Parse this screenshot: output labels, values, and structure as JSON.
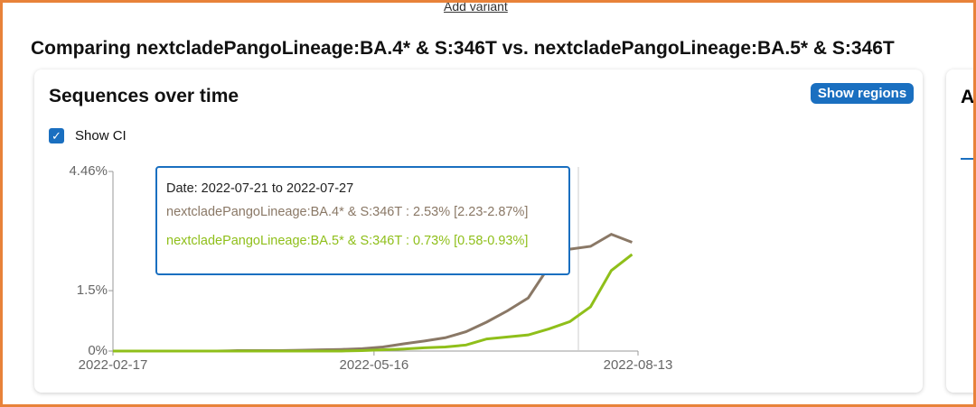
{
  "page": {
    "add_variant": "Add variant",
    "title": "Comparing nextcladePangoLineage:BA.4* & S:346T vs. nextcladePangoLineage:BA.5* & S:346T",
    "card_title": "Sequences over time",
    "button": "Show regions",
    "checkbox": "Show CI",
    "side_title": "A",
    "tooltip": {
      "date": "Date: 2022-07-21 to 2022-07-27",
      "lines": [
        "nextcladePangoLineage:BA.4* & S:346T : 2.53% [2.23-2.87%]",
        "nextcladePangoLineage:BA.5* & S:346T : 0.73% [0.58-0.93%]"
      ]
    }
  },
  "chart_data": {
    "type": "line",
    "x": [
      "2022-02-17",
      "2022-02-24",
      "2022-03-03",
      "2022-03-10",
      "2022-03-17",
      "2022-03-24",
      "2022-03-31",
      "2022-04-07",
      "2022-04-14",
      "2022-04-21",
      "2022-04-28",
      "2022-05-05",
      "2022-05-12",
      "2022-05-19",
      "2022-05-26",
      "2022-06-02",
      "2022-06-09",
      "2022-06-16",
      "2022-06-23",
      "2022-06-30",
      "2022-07-07",
      "2022-07-14",
      "2022-07-21",
      "2022-07-28",
      "2022-08-04",
      "2022-08-11"
    ],
    "series": [
      {
        "name": "nextcladePangoLineage:BA.4* & S:346T",
        "color": "#8a7866",
        "values": [
          0,
          0,
          0,
          0,
          0,
          0,
          0.01,
          0.01,
          0.01,
          0.02,
          0.03,
          0.04,
          0.06,
          0.1,
          0.18,
          0.25,
          0.33,
          0.48,
          0.72,
          1.0,
          1.32,
          2.1,
          2.53,
          2.6,
          2.9,
          2.7
        ]
      },
      {
        "name": "nextcladePangoLineage:BA.5* & S:346T",
        "color": "#8fbf1a",
        "values": [
          0,
          0,
          0,
          0,
          0,
          0,
          0,
          0,
          0,
          0,
          0,
          0,
          0.01,
          0.03,
          0.05,
          0.08,
          0.1,
          0.15,
          0.3,
          0.35,
          0.4,
          0.55,
          0.73,
          1.1,
          2.0,
          2.4
        ]
      }
    ],
    "xlim": [
      "2022-02-17",
      "2022-08-13"
    ],
    "xticks": [
      "2022-02-17",
      "2022-05-16",
      "2022-08-13"
    ],
    "ylim": [
      0,
      4.46
    ],
    "yticks": [
      {
        "value": 0,
        "label": "0%"
      },
      {
        "value": 1.5,
        "label": "1.5%"
      },
      {
        "value": 4.46,
        "label": "4.46%"
      }
    ],
    "grid": false
  }
}
